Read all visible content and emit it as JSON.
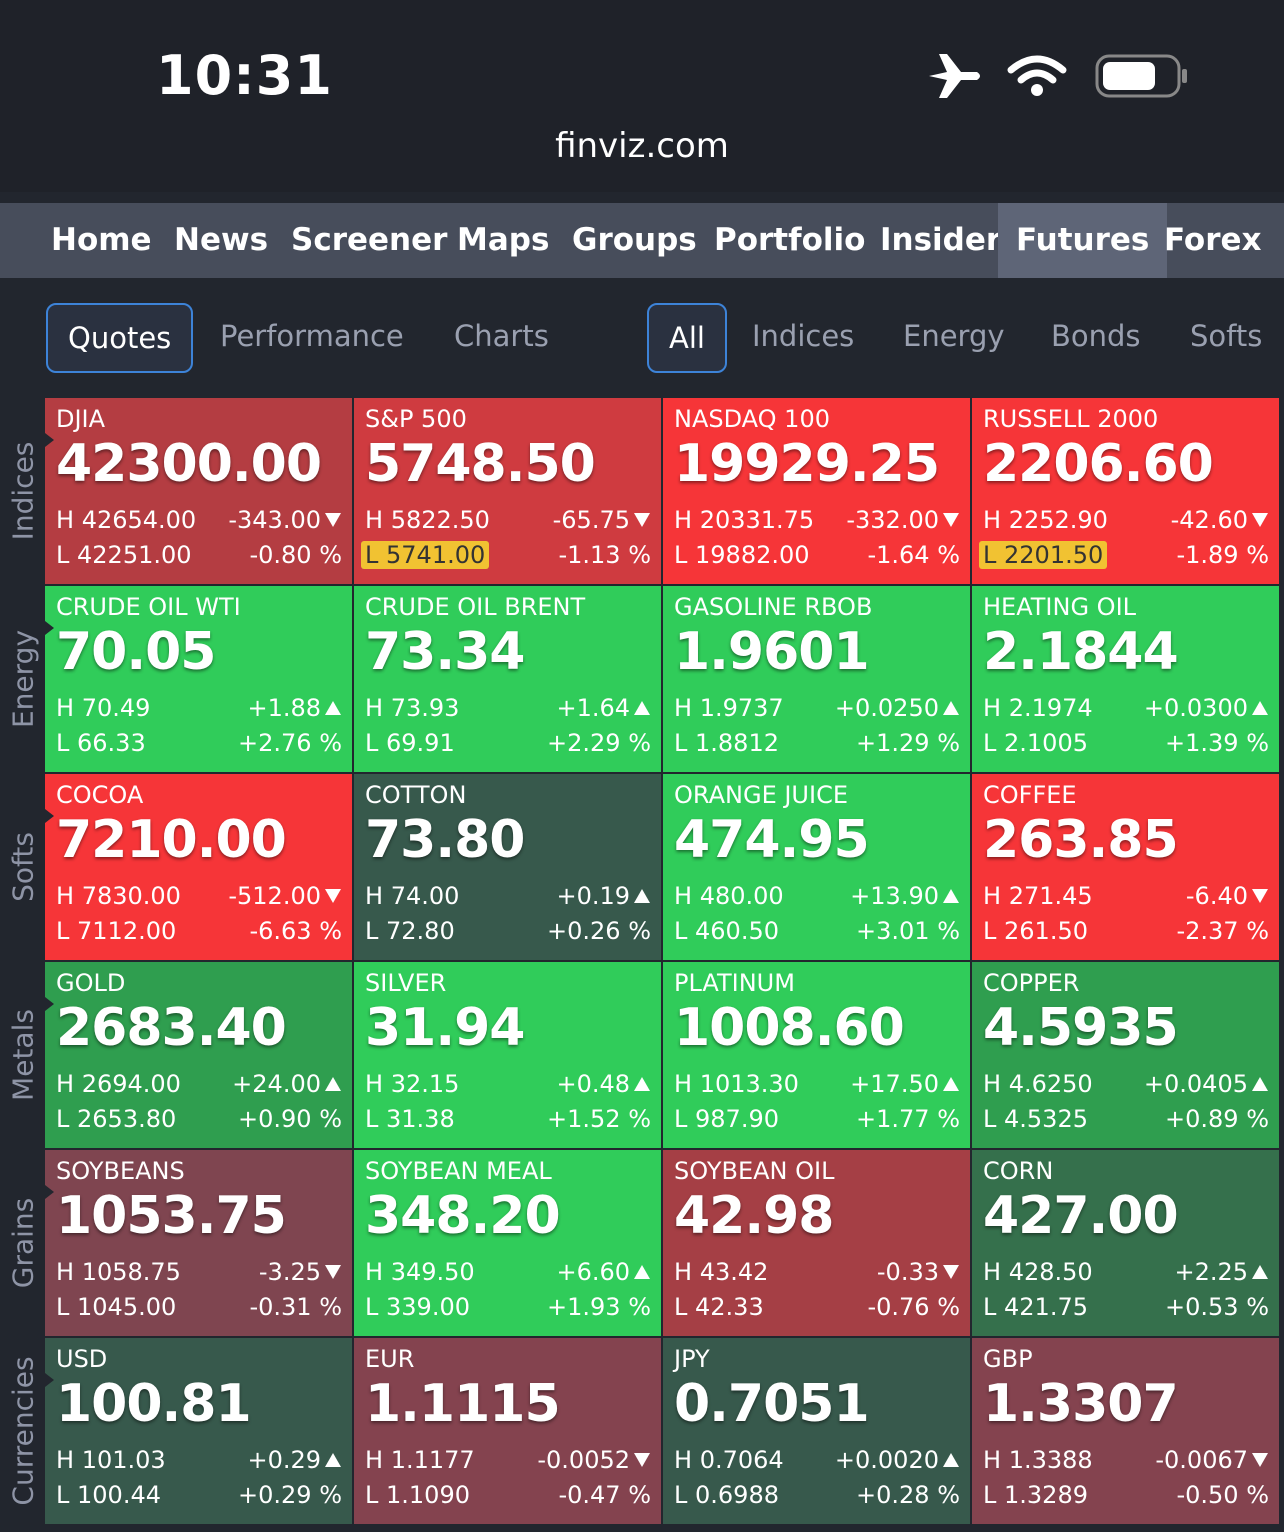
{
  "status_bar": {
    "time": "10:31",
    "url": "finviz.com"
  },
  "nav": {
    "items": [
      "Home",
      "News",
      "Screener",
      "Maps",
      "Groups",
      "Portfolio",
      "Insider",
      "Futures",
      "Forex"
    ],
    "active": 7
  },
  "view_tabs": {
    "items": [
      "Quotes",
      "Performance",
      "Charts"
    ],
    "active": 0
  },
  "filter_tabs": {
    "items": [
      "All",
      "Indices",
      "Energy",
      "Bonds",
      "Softs"
    ],
    "active": 0
  },
  "labels": {
    "high": "H",
    "low": "L"
  },
  "groups": [
    {
      "name": "Indices",
      "tiles": [
        {
          "name": "DJIA",
          "price": "42300.00",
          "high": "42654.00",
          "change": "-343.00",
          "low": "42251.00",
          "pct": "-0.80 %",
          "trend": "down",
          "color": "#b43d42"
        },
        {
          "name": "S&P 500",
          "price": "5748.50",
          "high": "5822.50",
          "change": "-65.75",
          "low": "5741.00",
          "pct": "-1.13 %",
          "trend": "down",
          "color": "#cf3b40",
          "low_highlight": true
        },
        {
          "name": "NASDAQ 100",
          "price": "19929.25",
          "high": "20331.75",
          "change": "-332.00",
          "low": "19882.00",
          "pct": "-1.64 %",
          "trend": "down",
          "color": "#f63538"
        },
        {
          "name": "RUSSELL 2000",
          "price": "2206.60",
          "high": "2252.90",
          "change": "-42.60",
          "low": "2201.50",
          "pct": "-1.89 %",
          "trend": "down",
          "color": "#f63538",
          "low_highlight": true
        }
      ]
    },
    {
      "name": "Energy",
      "tiles": [
        {
          "name": "CRUDE OIL WTI",
          "price": "70.05",
          "high": "70.49",
          "change": "+1.88",
          "low": "66.33",
          "pct": "+2.76 %",
          "trend": "up",
          "color": "#30cc5a"
        },
        {
          "name": "CRUDE OIL BRENT",
          "price": "73.34",
          "high": "73.93",
          "change": "+1.64",
          "low": "69.91",
          "pct": "+2.29 %",
          "trend": "up",
          "color": "#30cc5a"
        },
        {
          "name": "GASOLINE RBOB",
          "price": "1.9601",
          "high": "1.9737",
          "change": "+0.0250",
          "low": "1.8812",
          "pct": "+1.29 %",
          "trend": "up",
          "color": "#30cc5a"
        },
        {
          "name": "HEATING OIL",
          "price": "2.1844",
          "high": "2.1974",
          "change": "+0.0300",
          "low": "2.1005",
          "pct": "+1.39 %",
          "trend": "up",
          "color": "#30cc5a"
        }
      ]
    },
    {
      "name": "Softs",
      "tiles": [
        {
          "name": "COCOA",
          "price": "7210.00",
          "high": "7830.00",
          "change": "-512.00",
          "low": "7112.00",
          "pct": "-6.63 %",
          "trend": "down",
          "color": "#f63538"
        },
        {
          "name": "COTTON",
          "price": "73.80",
          "high": "74.00",
          "change": "+0.19",
          "low": "72.80",
          "pct": "+0.26 %",
          "trend": "up",
          "color": "#37594c"
        },
        {
          "name": "ORANGE JUICE",
          "price": "474.95",
          "high": "480.00",
          "change": "+13.90",
          "low": "460.50",
          "pct": "+3.01 %",
          "trend": "up",
          "color": "#30cc5a"
        },
        {
          "name": "COFFEE",
          "price": "263.85",
          "high": "271.45",
          "change": "-6.40",
          "low": "261.50",
          "pct": "-2.37 %",
          "trend": "down",
          "color": "#f63538"
        }
      ]
    },
    {
      "name": "Metals",
      "tiles": [
        {
          "name": "GOLD",
          "price": "2683.40",
          "high": "2694.00",
          "change": "+24.00",
          "low": "2653.80",
          "pct": "+0.90 %",
          "trend": "up",
          "color": "#2f9e4f"
        },
        {
          "name": "SILVER",
          "price": "31.94",
          "high": "32.15",
          "change": "+0.48",
          "low": "31.38",
          "pct": "+1.52 %",
          "trend": "up",
          "color": "#30cc5a"
        },
        {
          "name": "PLATINUM",
          "price": "1008.60",
          "high": "1013.30",
          "change": "+17.50",
          "low": "987.90",
          "pct": "+1.77 %",
          "trend": "up",
          "color": "#30cc5a"
        },
        {
          "name": "COPPER",
          "price": "4.5935",
          "high": "4.6250",
          "change": "+0.0405",
          "low": "4.5325",
          "pct": "+0.89 %",
          "trend": "up",
          "color": "#2f9e4f"
        }
      ]
    },
    {
      "name": "Grains",
      "tiles": [
        {
          "name": "SOYBEANS",
          "price": "1053.75",
          "high": "1058.75",
          "change": "-3.25",
          "low": "1045.00",
          "pct": "-0.31 %",
          "trend": "down",
          "color": "#7f4550"
        },
        {
          "name": "SOYBEAN MEAL",
          "price": "348.20",
          "high": "349.50",
          "change": "+6.60",
          "low": "339.00",
          "pct": "+1.93 %",
          "trend": "up",
          "color": "#30cc5a"
        },
        {
          "name": "SOYBEAN OIL",
          "price": "42.98",
          "high": "43.42",
          "change": "-0.33",
          "low": "42.33",
          "pct": "-0.76 %",
          "trend": "down",
          "color": "#a53f45"
        },
        {
          "name": "CORN",
          "price": "427.00",
          "high": "428.50",
          "change": "+2.25",
          "low": "421.75",
          "pct": "+0.53 %",
          "trend": "up",
          "color": "#35704c"
        }
      ]
    },
    {
      "name": "Currencies",
      "tiles": [
        {
          "name": "USD",
          "price": "100.81",
          "high": "101.03",
          "change": "+0.29",
          "low": "100.44",
          "pct": "+0.29 %",
          "trend": "up",
          "color": "#37594c"
        },
        {
          "name": "EUR",
          "price": "1.1115",
          "high": "1.1177",
          "change": "-0.0052",
          "low": "1.1090",
          "pct": "-0.47 %",
          "trend": "down",
          "color": "#84434f"
        },
        {
          "name": "JPY",
          "price": "0.7051",
          "high": "0.7064",
          "change": "+0.0020",
          "low": "0.6988",
          "pct": "+0.28 %",
          "trend": "up",
          "color": "#37594c"
        },
        {
          "name": "GBP",
          "price": "1.3307",
          "high": "1.3388",
          "change": "-0.0067",
          "low": "1.3289",
          "pct": "-0.50 %",
          "trend": "down",
          "color": "#84434f"
        }
      ]
    }
  ]
}
